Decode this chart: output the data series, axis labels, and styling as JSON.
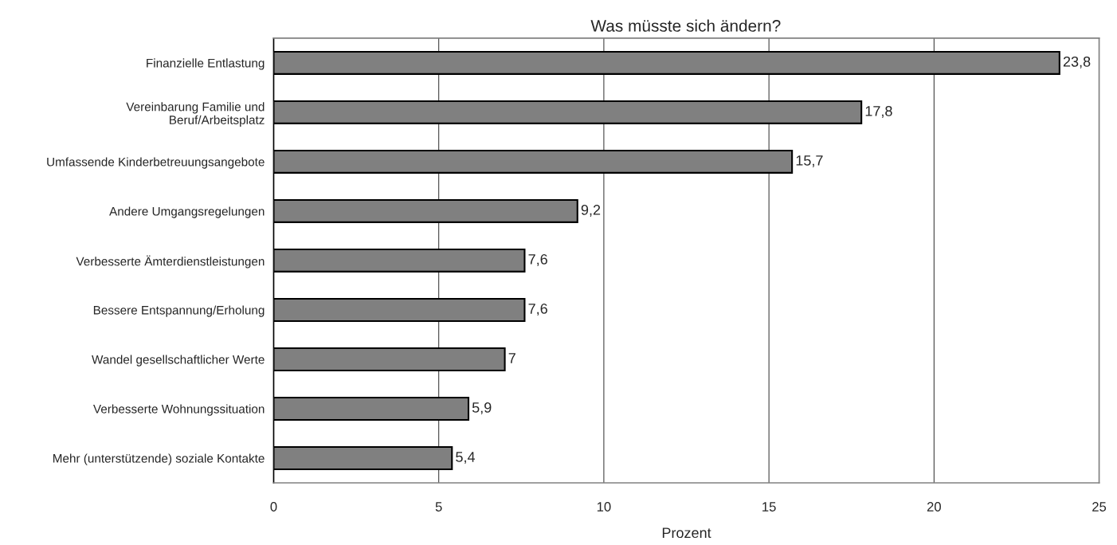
{
  "chart_data": {
    "type": "bar",
    "orientation": "horizontal",
    "title": "Was müsste sich ändern?",
    "xlabel": "Prozent",
    "categories": [
      "Finanzielle Entlastung",
      "Vereinbarung Familie und\nBeruf/Arbeitsplatz",
      "Umfassende Kinderbetreuungsangebote",
      "Andere Umgangsregelungen",
      "Verbesserte Ämterdienstleistungen",
      "Bessere Entspannung/Erholung",
      "Wandel gesellschaftlicher Werte",
      "Verbesserte Wohnungssituation",
      "Mehr (unterstützende) soziale Kontakte"
    ],
    "values": [
      23.8,
      17.8,
      15.7,
      9.2,
      7.6,
      7.6,
      7,
      5.9,
      5.4
    ],
    "value_labels": [
      "23,8",
      "17,8",
      "15,7",
      "9,2",
      "7,6",
      "7,6",
      "7",
      "5,9",
      "5,4"
    ],
    "color": "#808080",
    "xlim": [
      0,
      25
    ],
    "xticks": [
      0,
      5,
      10,
      15,
      20,
      25
    ],
    "grid": "x"
  }
}
